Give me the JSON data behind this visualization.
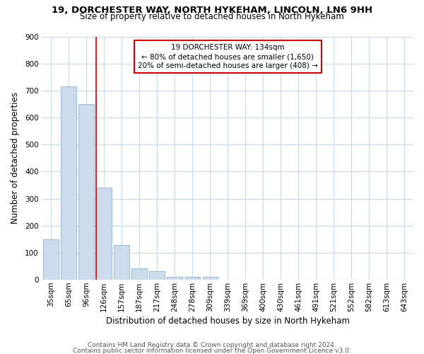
{
  "title1": "19, DORCHESTER WAY, NORTH HYKEHAM, LINCOLN, LN6 9HH",
  "title2": "Size of property relative to detached houses in North Hykeham",
  "xlabel": "Distribution of detached houses by size in North Hykeham",
  "ylabel": "Number of detached properties",
  "bar_values": [
    150,
    715,
    650,
    340,
    130,
    42,
    32,
    12,
    10,
    10,
    0,
    0,
    0,
    0,
    0,
    0,
    0,
    0,
    0,
    0,
    0
  ],
  "bin_labels": [
    "35sqm",
    "65sqm",
    "96sqm",
    "126sqm",
    "157sqm",
    "187sqm",
    "217sqm",
    "248sqm",
    "278sqm",
    "309sqm",
    "339sqm",
    "369sqm",
    "400sqm",
    "430sqm",
    "461sqm",
    "491sqm",
    "521sqm",
    "552sqm",
    "582sqm",
    "613sqm",
    "643sqm"
  ],
  "bar_color": "#ccdcec",
  "bar_edge_color": "#a0bcd4",
  "highlight_bar_index": 3,
  "highlight_line_color": "#cc0000",
  "annotation_text": "19 DORCHESTER WAY: 134sqm\n← 80% of detached houses are smaller (1,650)\n20% of semi-detached houses are larger (408) →",
  "annotation_box_color": "#ffffff",
  "annotation_box_edge_color": "#cc0000",
  "footer1": "Contains HM Land Registry data © Crown copyright and database right 2024.",
  "footer2": "Contains public sector information licensed under the Open Government Licence v3.0.",
  "ylim": [
    0,
    900
  ],
  "yticks": [
    0,
    100,
    200,
    300,
    400,
    500,
    600,
    700,
    800,
    900
  ],
  "bg_color": "#ffffff",
  "plot_bg_color": "#ffffff",
  "grid_color": "#c8d8e8",
  "fig_width": 6.0,
  "fig_height": 5.0,
  "title1_fontsize": 9.5,
  "title2_fontsize": 8.5,
  "axis_label_fontsize": 8.5,
  "tick_fontsize": 7.5,
  "annotation_fontsize": 7.5,
  "footer_fontsize": 6.5
}
